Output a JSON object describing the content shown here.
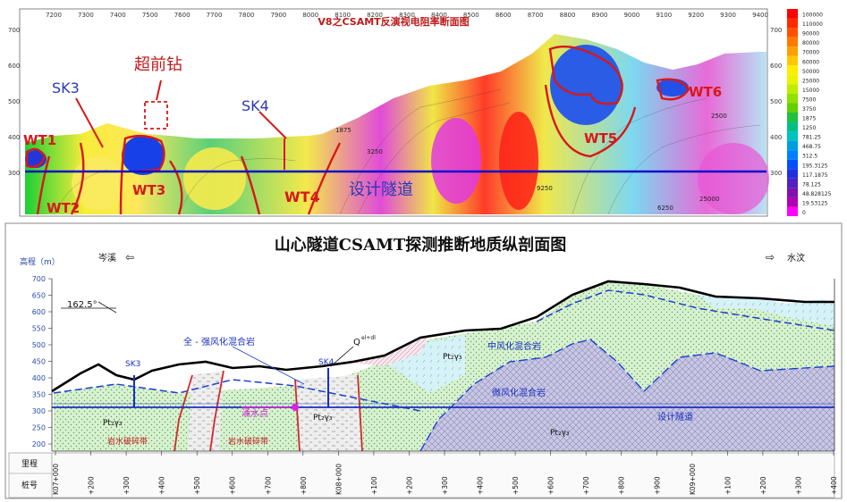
{
  "top_section": {
    "title": "V8之CSAMT反演视电阻率断面图",
    "x_ticks": [
      "7200",
      "7300",
      "7400",
      "7500",
      "7600",
      "7700",
      "7800",
      "7900",
      "8000",
      "8100",
      "8200",
      "8300",
      "8400",
      "8500",
      "8600",
      "8700",
      "8800",
      "8900",
      "9000",
      "9100",
      "9200",
      "9300",
      "9400"
    ],
    "y_ticks": [
      "700",
      "600",
      "500",
      "400",
      "300"
    ],
    "y_ticks_right": [
      "700",
      "600",
      "500",
      "400",
      "300"
    ],
    "legend_values": [
      "100000",
      "110000",
      "90000",
      "80000",
      "70000",
      "60000",
      "50000",
      "25000",
      "15000",
      "7500",
      "3750",
      "1875",
      "1250",
      "781.25",
      "468.75",
      "312.5",
      "195.3125",
      "117.1875",
      "78.125",
      "48.828125",
      "19.53125",
      "0"
    ],
    "legend_colors": [
      "#ff0000",
      "#ff2a00",
      "#ff5000",
      "#ff7a00",
      "#ffa000",
      "#ffc800",
      "#ffee00",
      "#e8f400",
      "#c0ec00",
      "#90e000",
      "#60d000",
      "#20c040",
      "#00c080",
      "#00c0c0",
      "#00a0e0",
      "#0080ff",
      "#0050ff",
      "#2030e0",
      "#5020c0",
      "#8010b0",
      "#b000b0",
      "#ff00ff"
    ],
    "labels": {
      "sk3": "SK3",
      "advance_drill": "超前钻",
      "sk4": "SK4",
      "wt1": "WT1",
      "wt2": "WT2",
      "wt3": "WT3",
      "wt4": "WT4",
      "wt5": "WT5",
      "wt6": "WT6",
      "design_tunnel": "设计隧道",
      "contour_1": "2500",
      "contour_2": "3250",
      "contour_3": "25000",
      "contour_4": "6250",
      "contour_5": "1875",
      "contour_6": "9250"
    }
  },
  "bottom_section": {
    "title": "山心隧道CSAMT探测推断地质纵剖面图",
    "left_direction": "岑溪",
    "right_direction": "水汶",
    "y_axis_label": "高程（m）",
    "y_ticks": [
      "700",
      "650",
      "600",
      "550",
      "500",
      "450",
      "400",
      "350",
      "300",
      "250",
      "200"
    ],
    "angle_label": "162.5°",
    "labels": {
      "sk3": "SK3",
      "sk4": "SK4",
      "strong_weathered": "全 - 强风化混合岩",
      "moderate_weathered": "中风化混合岩",
      "slight_weathered": "微风化混合岩",
      "quaternary": "Q",
      "quaternary_sup": "el+dl",
      "rock1": "Pt₂γ₃",
      "rock2": "Pt₂γ₃",
      "rock3": "Pt₂γ₃",
      "rock4": "Pt₂γ₃",
      "water_point": "涌水点",
      "fault_zone_1": "岩水破碎带",
      "fault_zone_2": "岩水破碎带",
      "design_tunnel": "设计隧道"
    },
    "row_labels": [
      "里程",
      "桩号"
    ],
    "mileage_ticks": [
      "K07+000",
      "+200",
      "+300",
      "+400",
      "+500",
      "+600",
      "+700",
      "+800",
      "K08+000",
      "+100",
      "+200",
      "+300",
      "+400",
      "+500",
      "+600",
      "+700",
      "+800",
      "+900",
      "K09+000",
      "+100",
      "+200",
      "+300",
      "+400"
    ]
  }
}
